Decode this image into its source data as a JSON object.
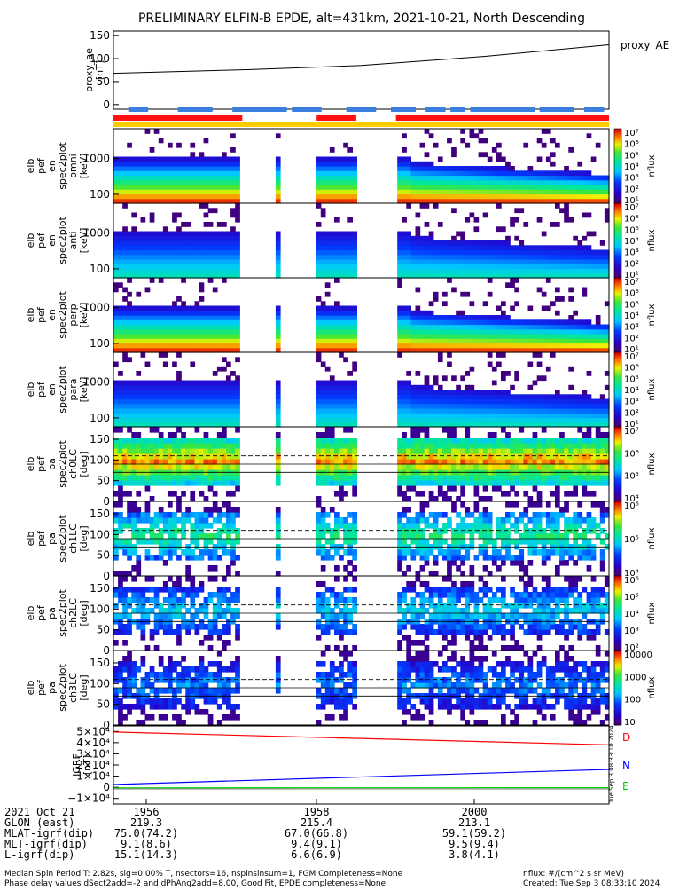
{
  "title": "PRELIMINARY ELFIN-B EPDE, alt=431km, 2021-10-21, North Descending",
  "colors": {
    "bar_blue": "#3a7fe0",
    "bar_red": "#ff1010",
    "bar_yellow": "#ffcc00",
    "grf_d": "#ff0000",
    "grf_n": "#0000ff",
    "grf_e": "#00cc00"
  },
  "chart_data": [
    {
      "type": "line",
      "id": "proxy_ae",
      "ylabel_lines": [
        "proxy_ae",
        "[nT]"
      ],
      "yticks": [
        "150",
        "100",
        "50",
        "0"
      ],
      "ylim": [
        -10,
        160
      ],
      "series": [
        {
          "name": "proxy_AE",
          "x": [
            0,
            0.27,
            0.5,
            0.75,
            1.0
          ],
          "values": [
            68,
            76,
            85,
            105,
            130
          ]
        }
      ]
    },
    {
      "type": "heatmap",
      "id": "omni",
      "ylabel_lines": [
        "elb",
        "pef",
        "en",
        "spec2plot",
        "omni",
        "[keV]"
      ],
      "yticks": [
        "1000",
        "100"
      ],
      "cbar_label": "nflux",
      "cbar_ticks": [
        "10⁷",
        "10⁶",
        "10⁵",
        "10⁴",
        "10³",
        "10²",
        "10¹"
      ]
    },
    {
      "type": "heatmap",
      "id": "anti",
      "ylabel_lines": [
        "elb",
        "pef",
        "en",
        "spec2plot",
        "anti",
        "[keV]"
      ],
      "yticks": [
        "1000",
        "100"
      ],
      "cbar_label": "nflux",
      "cbar_ticks": [
        "10⁷",
        "10⁶",
        "10⁵",
        "10⁴",
        "10³",
        "10²",
        "10¹"
      ]
    },
    {
      "type": "heatmap",
      "id": "perp",
      "ylabel_lines": [
        "elb",
        "pef",
        "en",
        "spec2plot",
        "perp",
        "[keV]"
      ],
      "yticks": [
        "1000",
        "100"
      ],
      "cbar_label": "nflux",
      "cbar_ticks": [
        "10⁷",
        "10⁶",
        "10⁵",
        "10⁴",
        "10³",
        "10²",
        "10¹"
      ]
    },
    {
      "type": "heatmap",
      "id": "para",
      "ylabel_lines": [
        "elb",
        "pef",
        "en",
        "spec2plot",
        "para",
        "[keV]"
      ],
      "yticks": [
        "1000",
        "100"
      ],
      "cbar_label": "nflux",
      "cbar_ticks": [
        "10⁷",
        "10⁶",
        "10⁵",
        "10⁴",
        "10³",
        "10²",
        "10¹"
      ]
    },
    {
      "type": "heatmap",
      "id": "ch0LC",
      "ylabel_lines": [
        "elb",
        "pef",
        "pa",
        "spec2plot",
        "ch0LC",
        "[deg]"
      ],
      "yticks": [
        "150",
        "100",
        "50",
        "0"
      ],
      "cbar_label": "nflux",
      "cbar_ticks": [
        "10⁷",
        "10⁶",
        "10⁵",
        "10⁴"
      ]
    },
    {
      "type": "heatmap",
      "id": "ch1LC",
      "ylabel_lines": [
        "elb",
        "pef",
        "pa",
        "spec2plot",
        "ch1LC",
        "[deg]"
      ],
      "yticks": [
        "150",
        "100",
        "50",
        "0"
      ],
      "cbar_label": "nflux",
      "cbar_ticks": [
        "10⁶",
        "10⁵",
        "10⁴"
      ]
    },
    {
      "type": "heatmap",
      "id": "ch2LC",
      "ylabel_lines": [
        "elb",
        "pef",
        "pa",
        "spec2plot",
        "ch2LC",
        "[deg]"
      ],
      "yticks": [
        "150",
        "100",
        "50",
        "0"
      ],
      "cbar_label": "nflux",
      "cbar_ticks": [
        "10⁶",
        "10⁵",
        "10⁴",
        "10³",
        "10²"
      ]
    },
    {
      "type": "heatmap",
      "id": "ch3LC",
      "ylabel_lines": [
        "elb",
        "pef",
        "pa",
        "spec2plot",
        "ch3LC",
        "[deg]"
      ],
      "yticks": [
        "150",
        "100",
        "50",
        "0"
      ],
      "cbar_label": "nflux",
      "cbar_ticks": [
        "10000",
        "1000",
        "100",
        "10"
      ]
    },
    {
      "type": "line",
      "id": "igrf",
      "ylabel_lines": [
        "IGRF",
        "[nT]"
      ],
      "yticks": [
        "5×10⁴",
        "4×10⁴",
        "3×10⁴",
        "2×10⁴",
        "1×10⁴",
        "0",
        "−1×10⁴"
      ],
      "ylim": [
        -15000,
        55000
      ],
      "series": [
        {
          "name": "D",
          "x": [
            0,
            1
          ],
          "values": [
            49500,
            38000
          ]
        },
        {
          "name": "N",
          "x": [
            0,
            1
          ],
          "values": [
            2500,
            16000
          ]
        },
        {
          "name": "E",
          "x": [
            0,
            1
          ],
          "values": [
            -500,
            -400
          ]
        }
      ]
    }
  ],
  "stamp": "Tue Sep  3 08:33:10 2024",
  "footer": {
    "rows": [
      {
        "label": "2021 Oct 21",
        "v1": "1956",
        "v2": "1958",
        "v3": "2000"
      },
      {
        "label": "GLON (east)",
        "v1": "219.3",
        "v2": "215.4",
        "v3": "213.1"
      },
      {
        "label": "MLAT-igrf(dip)",
        "v1": "75.0(74.2)",
        "v2": "67.0(66.8)",
        "v3": "59.1(59.2)"
      },
      {
        "label": "MLT-igrf(dip)",
        "v1": "9.1(8.6)",
        "v2": "9.4(9.1)",
        "v3": "9.5(9.4)"
      },
      {
        "label": "L-igrf(dip)",
        "v1": "15.1(14.3)",
        "v2": "6.6(6.9)",
        "v3": "3.8(4.1)"
      }
    ],
    "note_left_1": "Median Spin Period T: 2.82s, sig=0.00% T, nsectors=16, nspinsinsum=1, FGM Completeness=None",
    "note_left_2": "Phase delay values dSect2add=-2 and dPhAng2add=8.00, Good Fit, EPDE completeness=None",
    "note_right_1": "nflux: #/(cm^2 s sr MeV)",
    "note_right_2": "Created: Tue Sep  3 08:33:10 2024"
  }
}
